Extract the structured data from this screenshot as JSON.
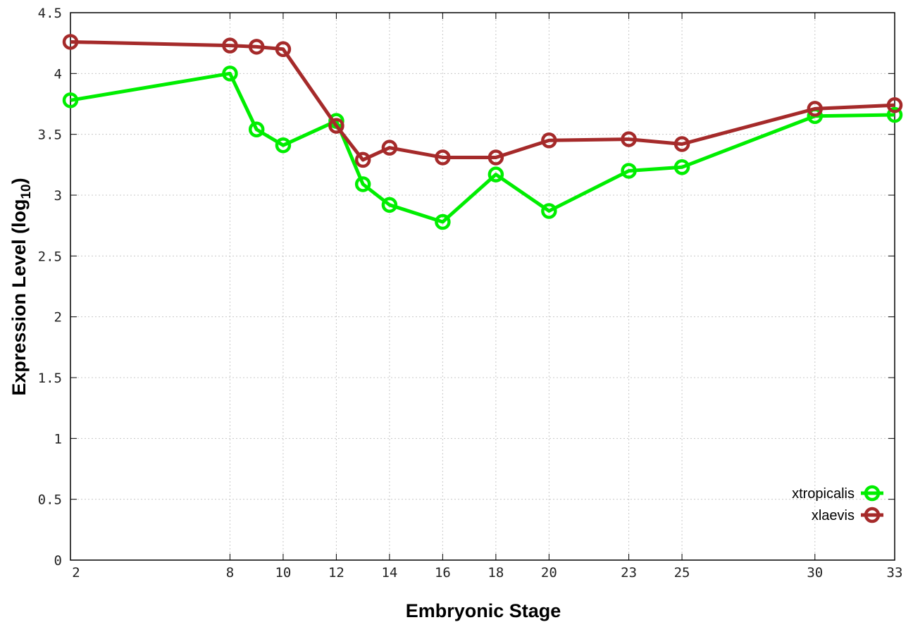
{
  "chart_data": {
    "type": "line",
    "title": "",
    "xlabel": "Embryonic Stage",
    "ylabel": "Expression Level (log",
    "ylabel_sub": "10",
    "ylabel_end": ")",
    "x": [
      2,
      8,
      9,
      10,
      12,
      13,
      14,
      16,
      18,
      20,
      23,
      25,
      30,
      33
    ],
    "xticks": [
      2,
      8,
      10,
      12,
      14,
      16,
      18,
      20,
      23,
      25,
      30,
      33
    ],
    "yticks": [
      "0",
      "0.5",
      "1",
      "1.5",
      "2",
      "2.5",
      "3",
      "3.5",
      "4",
      "4.5"
    ],
    "xlim": [
      2,
      33
    ],
    "ylim": [
      0,
      4.5
    ],
    "grid": true,
    "legend_position": "bottom-right",
    "series": [
      {
        "name": "xtropicalis",
        "color": "#00ee00",
        "marker": "open-circle",
        "values": [
          3.78,
          4.0,
          3.54,
          3.41,
          3.61,
          3.09,
          2.92,
          2.78,
          3.17,
          2.87,
          3.2,
          3.23,
          3.65,
          3.66
        ]
      },
      {
        "name": "xlaevis",
        "color": "#a52a2a",
        "marker": "open-circle",
        "values": [
          4.26,
          4.23,
          4.22,
          4.2,
          3.57,
          3.29,
          3.39,
          3.31,
          3.31,
          3.45,
          3.46,
          3.42,
          3.71,
          3.74
        ]
      }
    ]
  }
}
